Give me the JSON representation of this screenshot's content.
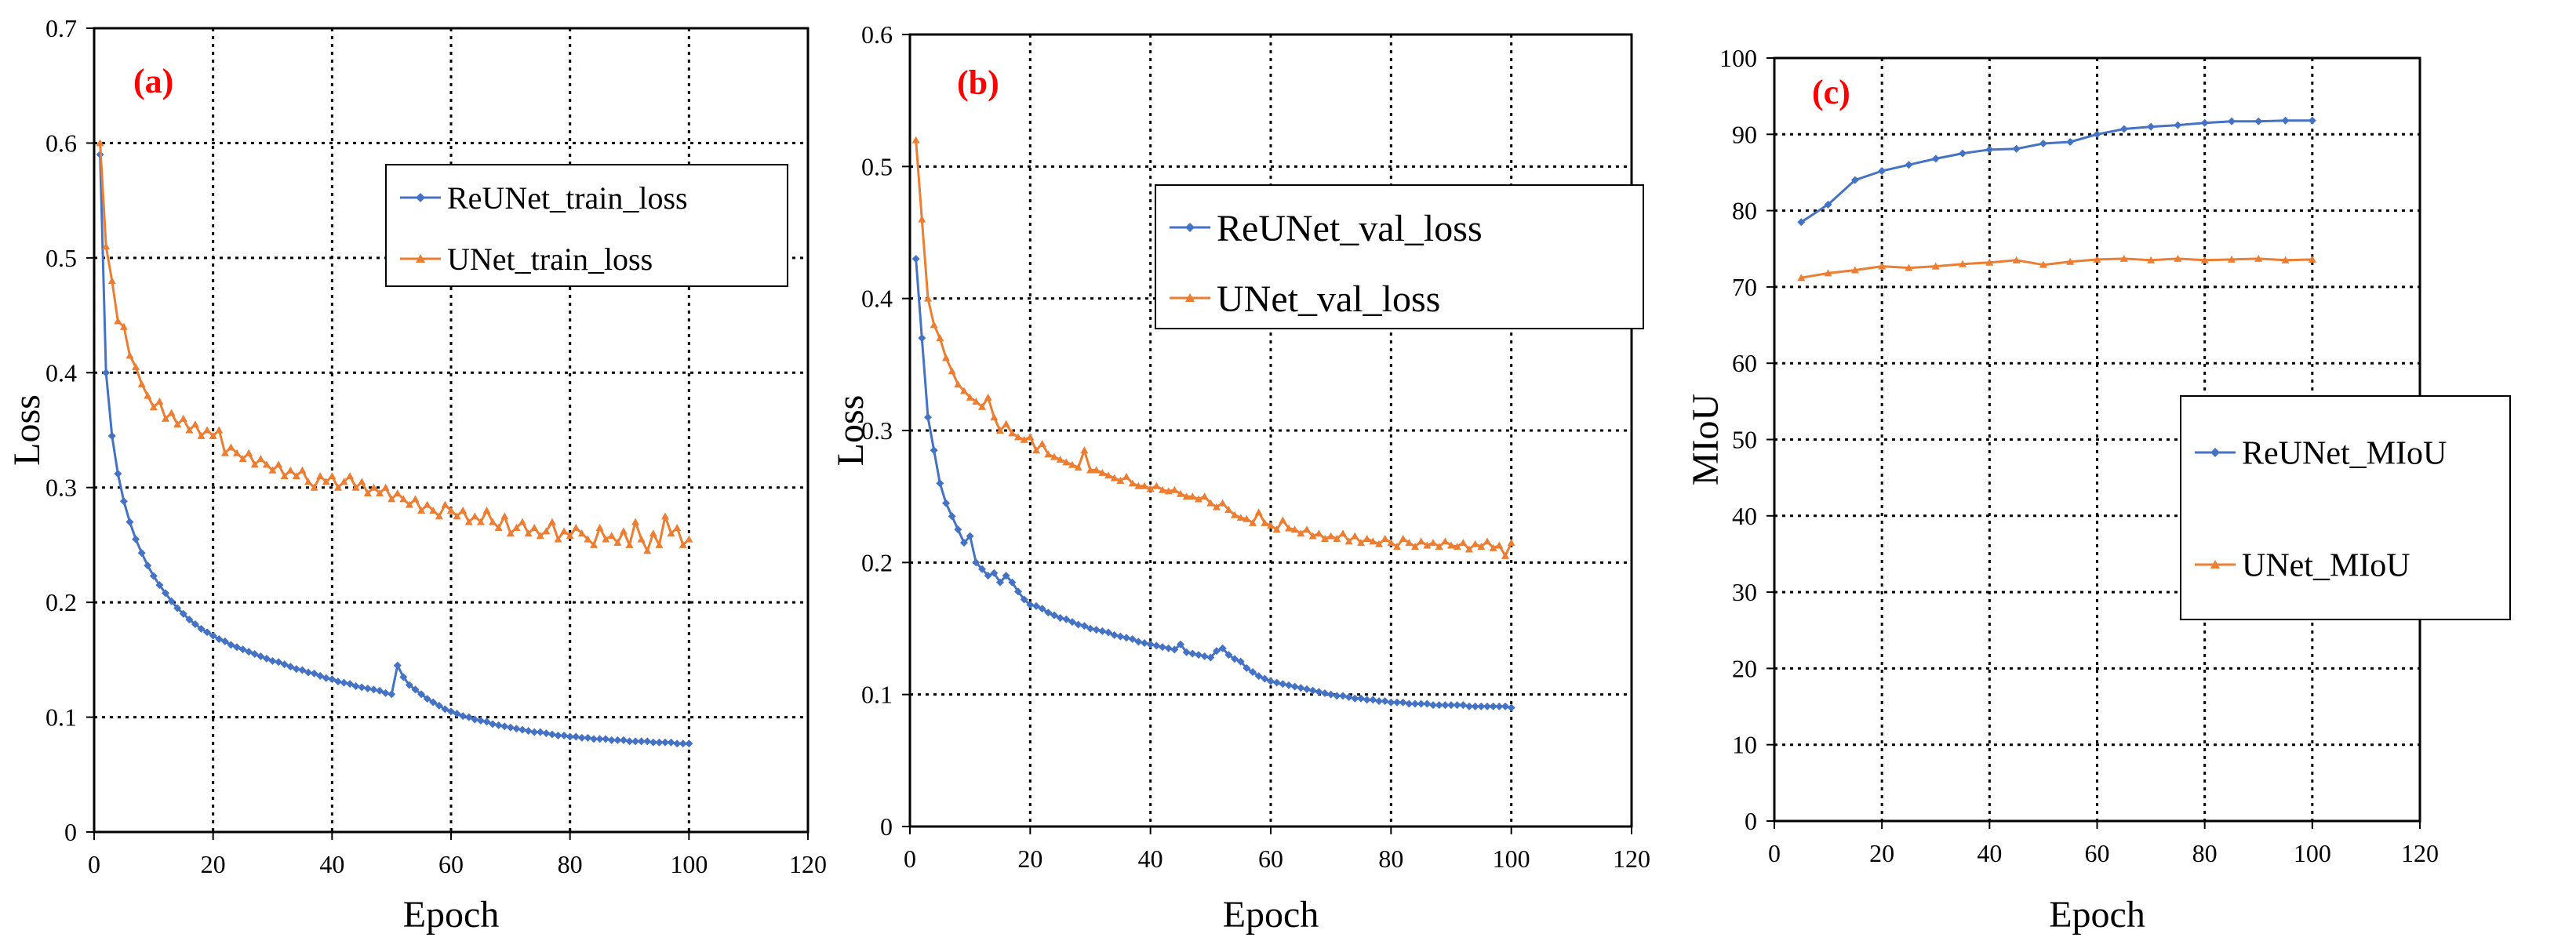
{
  "colors": {
    "blue": "#4472C4",
    "orange": "#ED7D31",
    "panel_label": "#FF0000",
    "grid": "#000000"
  },
  "chart_data": [
    {
      "type": "line",
      "panel_label": "(a)",
      "xlabel": "Epoch",
      "ylabel": "Loss",
      "xlim": [
        0,
        120
      ],
      "ylim": [
        0,
        0.7
      ],
      "xticks": [
        0,
        20,
        40,
        60,
        80,
        100,
        120
      ],
      "yticks": [
        0,
        0.1,
        0.2,
        0.3,
        0.4,
        0.5,
        0.6,
        0.7
      ],
      "ytick_labels": [
        "0",
        "0.1",
        "0.2",
        "0.3",
        "0.4",
        "0.5",
        "0.6",
        "0.7"
      ],
      "legend_position": "upper-right",
      "series": [
        {
          "name": "ReUNet_train_loss",
          "color": "#4472C4",
          "marker": "diamond",
          "x": [
            1,
            2,
            3,
            4,
            5,
            6,
            7,
            8,
            9,
            10,
            11,
            12,
            13,
            14,
            15,
            16,
            17,
            18,
            19,
            20,
            21,
            22,
            23,
            24,
            25,
            26,
            27,
            28,
            29,
            30,
            31,
            32,
            33,
            34,
            35,
            36,
            37,
            38,
            39,
            40,
            41,
            42,
            43,
            44,
            45,
            46,
            47,
            48,
            49,
            50,
            51,
            52,
            53,
            54,
            55,
            56,
            57,
            58,
            59,
            60,
            61,
            62,
            63,
            64,
            65,
            66,
            67,
            68,
            69,
            70,
            71,
            72,
            73,
            74,
            75,
            76,
            77,
            78,
            79,
            80,
            81,
            82,
            83,
            84,
            85,
            86,
            87,
            88,
            89,
            90,
            91,
            92,
            93,
            94,
            95,
            96,
            97,
            98,
            99,
            100
          ],
          "y": [
            0.59,
            0.4,
            0.345,
            0.312,
            0.288,
            0.27,
            0.255,
            0.243,
            0.232,
            0.223,
            0.215,
            0.208,
            0.201,
            0.195,
            0.19,
            0.185,
            0.181,
            0.177,
            0.174,
            0.171,
            0.168,
            0.166,
            0.163,
            0.161,
            0.159,
            0.157,
            0.155,
            0.153,
            0.151,
            0.149,
            0.148,
            0.146,
            0.144,
            0.142,
            0.141,
            0.139,
            0.138,
            0.136,
            0.134,
            0.133,
            0.131,
            0.13,
            0.129,
            0.127,
            0.126,
            0.125,
            0.124,
            0.123,
            0.121,
            0.12,
            0.145,
            0.135,
            0.128,
            0.124,
            0.12,
            0.116,
            0.113,
            0.11,
            0.107,
            0.105,
            0.103,
            0.101,
            0.1,
            0.098,
            0.097,
            0.096,
            0.094,
            0.093,
            0.092,
            0.091,
            0.09,
            0.089,
            0.088,
            0.087,
            0.087,
            0.086,
            0.085,
            0.084,
            0.084,
            0.083,
            0.083,
            0.082,
            0.082,
            0.081,
            0.081,
            0.081,
            0.08,
            0.08,
            0.08,
            0.079,
            0.079,
            0.079,
            0.079,
            0.078,
            0.078,
            0.078,
            0.078,
            0.077,
            0.077,
            0.077
          ]
        },
        {
          "name": "UNet_train_loss",
          "color": "#ED7D31",
          "marker": "triangle",
          "x": [
            1,
            2,
            3,
            4,
            5,
            6,
            7,
            8,
            9,
            10,
            11,
            12,
            13,
            14,
            15,
            16,
            17,
            18,
            19,
            20,
            21,
            22,
            23,
            24,
            25,
            26,
            27,
            28,
            29,
            30,
            31,
            32,
            33,
            34,
            35,
            36,
            37,
            38,
            39,
            40,
            41,
            42,
            43,
            44,
            45,
            46,
            47,
            48,
            49,
            50,
            51,
            52,
            53,
            54,
            55,
            56,
            57,
            58,
            59,
            60,
            61,
            62,
            63,
            64,
            65,
            66,
            67,
            68,
            69,
            70,
            71,
            72,
            73,
            74,
            75,
            76,
            77,
            78,
            79,
            80,
            81,
            82,
            83,
            84,
            85,
            86,
            87,
            88,
            89,
            90,
            91,
            92,
            93,
            94,
            95,
            96,
            97,
            98,
            99,
            100
          ],
          "y": [
            0.6,
            0.51,
            0.48,
            0.445,
            0.44,
            0.415,
            0.405,
            0.39,
            0.38,
            0.37,
            0.375,
            0.36,
            0.365,
            0.355,
            0.36,
            0.35,
            0.355,
            0.345,
            0.35,
            0.345,
            0.35,
            0.33,
            0.335,
            0.33,
            0.325,
            0.33,
            0.32,
            0.325,
            0.32,
            0.315,
            0.32,
            0.31,
            0.315,
            0.31,
            0.315,
            0.305,
            0.3,
            0.31,
            0.305,
            0.31,
            0.3,
            0.305,
            0.31,
            0.3,
            0.305,
            0.295,
            0.3,
            0.295,
            0.3,
            0.29,
            0.295,
            0.29,
            0.285,
            0.29,
            0.28,
            0.285,
            0.28,
            0.275,
            0.285,
            0.28,
            0.275,
            0.28,
            0.27,
            0.275,
            0.27,
            0.28,
            0.27,
            0.265,
            0.275,
            0.26,
            0.265,
            0.27,
            0.26,
            0.265,
            0.258,
            0.262,
            0.27,
            0.255,
            0.262,
            0.258,
            0.265,
            0.26,
            0.255,
            0.25,
            0.265,
            0.255,
            0.258,
            0.252,
            0.262,
            0.25,
            0.27,
            0.255,
            0.245,
            0.26,
            0.25,
            0.275,
            0.26,
            0.265,
            0.25,
            0.255
          ]
        }
      ]
    },
    {
      "type": "line",
      "panel_label": "(b)",
      "xlabel": "Epoch",
      "ylabel": "Loss",
      "xlim": [
        0,
        120
      ],
      "ylim": [
        0,
        0.6
      ],
      "xticks": [
        0,
        20,
        40,
        60,
        80,
        100,
        120
      ],
      "yticks": [
        0,
        0.1,
        0.2,
        0.3,
        0.4,
        0.5,
        0.6
      ],
      "ytick_labels": [
        "0",
        "0.1",
        "0.2",
        "0.3",
        "0.4",
        "0.5",
        "0.6"
      ],
      "legend_position": "upper-right",
      "series": [
        {
          "name": "ReUNet_val_loss",
          "color": "#4472C4",
          "marker": "diamond",
          "x": [
            1,
            2,
            3,
            4,
            5,
            6,
            7,
            8,
            9,
            10,
            11,
            12,
            13,
            14,
            15,
            16,
            17,
            18,
            19,
            20,
            21,
            22,
            23,
            24,
            25,
            26,
            27,
            28,
            29,
            30,
            31,
            32,
            33,
            34,
            35,
            36,
            37,
            38,
            39,
            40,
            41,
            42,
            43,
            44,
            45,
            46,
            47,
            48,
            49,
            50,
            51,
            52,
            53,
            54,
            55,
            56,
            57,
            58,
            59,
            60,
            61,
            62,
            63,
            64,
            65,
            66,
            67,
            68,
            69,
            70,
            71,
            72,
            73,
            74,
            75,
            76,
            77,
            78,
            79,
            80,
            81,
            82,
            83,
            84,
            85,
            86,
            87,
            88,
            89,
            90,
            91,
            92,
            93,
            94,
            95,
            96,
            97,
            98,
            99,
            100
          ],
          "y": [
            0.43,
            0.37,
            0.31,
            0.285,
            0.26,
            0.245,
            0.235,
            0.225,
            0.215,
            0.22,
            0.2,
            0.195,
            0.19,
            0.192,
            0.185,
            0.19,
            0.185,
            0.178,
            0.172,
            0.168,
            0.167,
            0.165,
            0.162,
            0.16,
            0.158,
            0.157,
            0.155,
            0.153,
            0.152,
            0.15,
            0.149,
            0.148,
            0.147,
            0.145,
            0.144,
            0.143,
            0.142,
            0.14,
            0.139,
            0.138,
            0.137,
            0.136,
            0.135,
            0.134,
            0.138,
            0.132,
            0.131,
            0.13,
            0.129,
            0.128,
            0.133,
            0.135,
            0.13,
            0.127,
            0.125,
            0.12,
            0.117,
            0.114,
            0.112,
            0.11,
            0.109,
            0.108,
            0.107,
            0.106,
            0.105,
            0.104,
            0.103,
            0.102,
            0.101,
            0.1,
            0.099,
            0.099,
            0.098,
            0.097,
            0.097,
            0.096,
            0.096,
            0.095,
            0.095,
            0.094,
            0.094,
            0.094,
            0.093,
            0.093,
            0.093,
            0.093,
            0.092,
            0.092,
            0.092,
            0.092,
            0.092,
            0.092,
            0.091,
            0.091,
            0.091,
            0.091,
            0.091,
            0.091,
            0.091,
            0.09
          ]
        },
        {
          "name": "UNet_val_loss",
          "color": "#ED7D31",
          "marker": "triangle",
          "x": [
            1,
            2,
            3,
            4,
            5,
            6,
            7,
            8,
            9,
            10,
            11,
            12,
            13,
            14,
            15,
            16,
            17,
            18,
            19,
            20,
            21,
            22,
            23,
            24,
            25,
            26,
            27,
            28,
            29,
            30,
            31,
            32,
            33,
            34,
            35,
            36,
            37,
            38,
            39,
            40,
            41,
            42,
            43,
            44,
            45,
            46,
            47,
            48,
            49,
            50,
            51,
            52,
            53,
            54,
            55,
            56,
            57,
            58,
            59,
            60,
            61,
            62,
            63,
            64,
            65,
            66,
            67,
            68,
            69,
            70,
            71,
            72,
            73,
            74,
            75,
            76,
            77,
            78,
            79,
            80,
            81,
            82,
            83,
            84,
            85,
            86,
            87,
            88,
            89,
            90,
            91,
            92,
            93,
            94,
            95,
            96,
            97,
            98,
            99,
            100
          ],
          "y": [
            0.52,
            0.46,
            0.4,
            0.38,
            0.37,
            0.355,
            0.345,
            0.335,
            0.33,
            0.325,
            0.322,
            0.318,
            0.325,
            0.31,
            0.3,
            0.305,
            0.298,
            0.295,
            0.293,
            0.295,
            0.285,
            0.29,
            0.282,
            0.28,
            0.278,
            0.276,
            0.274,
            0.272,
            0.285,
            0.27,
            0.27,
            0.268,
            0.266,
            0.264,
            0.262,
            0.265,
            0.26,
            0.258,
            0.258,
            0.256,
            0.258,
            0.255,
            0.254,
            0.255,
            0.252,
            0.25,
            0.25,
            0.248,
            0.25,
            0.245,
            0.242,
            0.245,
            0.24,
            0.236,
            0.234,
            0.233,
            0.23,
            0.238,
            0.23,
            0.228,
            0.225,
            0.232,
            0.226,
            0.225,
            0.222,
            0.225,
            0.22,
            0.222,
            0.218,
            0.22,
            0.218,
            0.222,
            0.216,
            0.22,
            0.215,
            0.218,
            0.216,
            0.214,
            0.218,
            0.215,
            0.212,
            0.218,
            0.215,
            0.212,
            0.216,
            0.213,
            0.215,
            0.212,
            0.216,
            0.213,
            0.212,
            0.215,
            0.21,
            0.214,
            0.212,
            0.216,
            0.211,
            0.213,
            0.205,
            0.215
          ]
        }
      ]
    },
    {
      "type": "line",
      "panel_label": "(c)",
      "xlabel": "Epoch",
      "ylabel": "MIoU",
      "xlim": [
        0,
        120
      ],
      "ylim": [
        0,
        100
      ],
      "xticks": [
        0,
        20,
        40,
        60,
        80,
        100,
        120
      ],
      "yticks": [
        0,
        10,
        20,
        30,
        40,
        50,
        60,
        70,
        80,
        90,
        100
      ],
      "ytick_labels": [
        "0",
        "10",
        "20",
        "30",
        "40",
        "50",
        "60",
        "70",
        "80",
        "90",
        "100"
      ],
      "legend_position": "middle-right",
      "series": [
        {
          "name": "ReUNet_MIoU",
          "color": "#4472C4",
          "marker": "diamond",
          "x": [
            5,
            10,
            15,
            20,
            25,
            30,
            35,
            40,
            45,
            50,
            55,
            60,
            65,
            70,
            75,
            80,
            85,
            90,
            95,
            100
          ],
          "y": [
            78.5,
            80.8,
            84.0,
            85.2,
            86.0,
            86.8,
            87.5,
            88.0,
            88.1,
            88.8,
            89.0,
            90.0,
            90.7,
            91.0,
            91.2,
            91.5,
            91.7,
            91.7,
            91.8,
            91.8
          ]
        },
        {
          "name": "UNet_MIoU",
          "color": "#ED7D31",
          "marker": "triangle",
          "x": [
            5,
            10,
            15,
            20,
            25,
            30,
            35,
            40,
            45,
            50,
            55,
            60,
            65,
            70,
            75,
            80,
            85,
            90,
            95,
            100
          ],
          "y": [
            71.2,
            71.8,
            72.2,
            72.7,
            72.5,
            72.7,
            73.0,
            73.2,
            73.5,
            72.9,
            73.3,
            73.6,
            73.7,
            73.5,
            73.7,
            73.5,
            73.6,
            73.7,
            73.5,
            73.6
          ]
        }
      ]
    }
  ]
}
